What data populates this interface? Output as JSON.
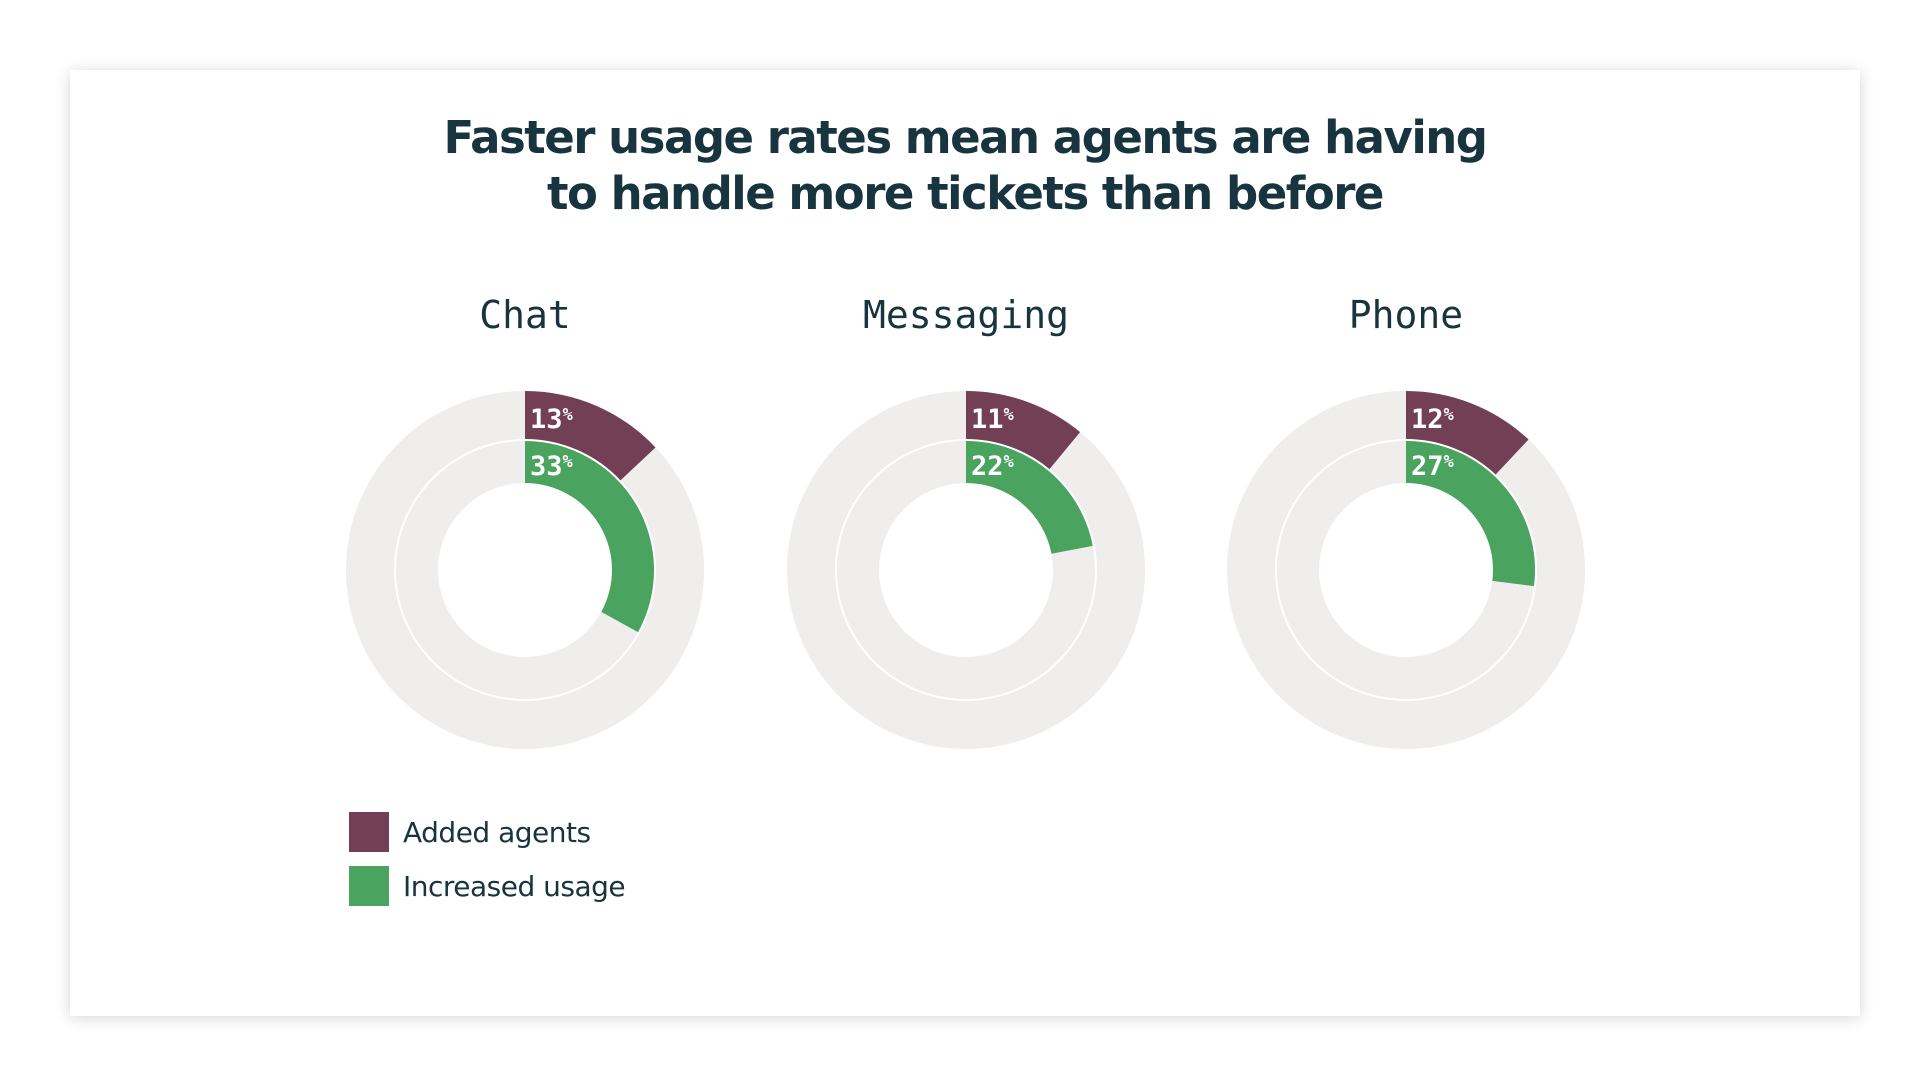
{
  "title_lines": [
    "Faster usage rates mean agents are having",
    "to handle more tickets than before"
  ],
  "colors": {
    "added": "#733f54",
    "usage": "#4aa35f",
    "track": "#efeeec",
    "text": "#17343f"
  },
  "chart_data": {
    "type": "donut",
    "value_suffix": "%",
    "series_names": [
      "Added agents",
      "Increased usage"
    ],
    "charts": [
      {
        "name": "Chat",
        "added_agents": 13,
        "increased_usage": 33
      },
      {
        "name": "Messaging",
        "added_agents": 11,
        "increased_usage": 22
      },
      {
        "name": "Phone",
        "added_agents": 12,
        "increased_usage": 27
      }
    ]
  },
  "legend": [
    {
      "label": "Added agents",
      "color": "#733f54"
    },
    {
      "label": "Increased usage",
      "color": "#4aa35f"
    }
  ]
}
